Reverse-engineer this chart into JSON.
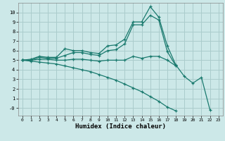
{
  "title": "",
  "xlabel": "Humidex (Indice chaleur)",
  "background_color": "#cce8e8",
  "grid_color": "#aacccc",
  "line_color": "#1a7a6e",
  "xlim": [
    -0.5,
    23.5
  ],
  "ylim": [
    -0.8,
    11.0
  ],
  "xticks": [
    0,
    1,
    2,
    3,
    4,
    5,
    6,
    7,
    8,
    9,
    10,
    11,
    12,
    13,
    14,
    15,
    16,
    17,
    18,
    19,
    20,
    21,
    22,
    23
  ],
  "yticks": [
    0,
    1,
    2,
    3,
    4,
    5,
    6,
    7,
    8,
    9,
    10
  ],
  "ytick_labels": [
    "-0",
    "1",
    "2",
    "3",
    "4",
    "5",
    "6",
    "7",
    "8",
    "9",
    "10"
  ],
  "lines": [
    [
      5.0,
      5.1,
      5.4,
      5.3,
      5.3,
      6.2,
      6.0,
      6.0,
      5.8,
      5.7,
      6.5,
      6.6,
      7.2,
      9.0,
      9.0,
      10.6,
      9.5,
      6.5,
      4.5,
      3.3,
      2.6,
      3.2,
      -0.2,
      null
    ],
    [
      5.0,
      5.0,
      5.3,
      5.2,
      5.2,
      5.5,
      5.8,
      5.8,
      5.6,
      5.5,
      6.0,
      6.1,
      6.7,
      8.7,
      8.7,
      9.7,
      9.2,
      5.9,
      4.4,
      null,
      null,
      null,
      null,
      null
    ],
    [
      5.0,
      5.0,
      5.1,
      5.1,
      5.0,
      5.0,
      5.1,
      5.1,
      5.0,
      4.9,
      5.0,
      5.0,
      5.0,
      5.4,
      5.2,
      5.4,
      5.4,
      5.0,
      4.4,
      null,
      null,
      null,
      null,
      null
    ],
    [
      5.0,
      4.9,
      4.8,
      4.7,
      4.6,
      4.4,
      4.2,
      4.0,
      3.8,
      3.5,
      3.2,
      2.9,
      2.5,
      2.1,
      1.7,
      1.2,
      0.7,
      0.1,
      -0.3,
      null,
      null,
      null,
      null,
      null
    ]
  ]
}
